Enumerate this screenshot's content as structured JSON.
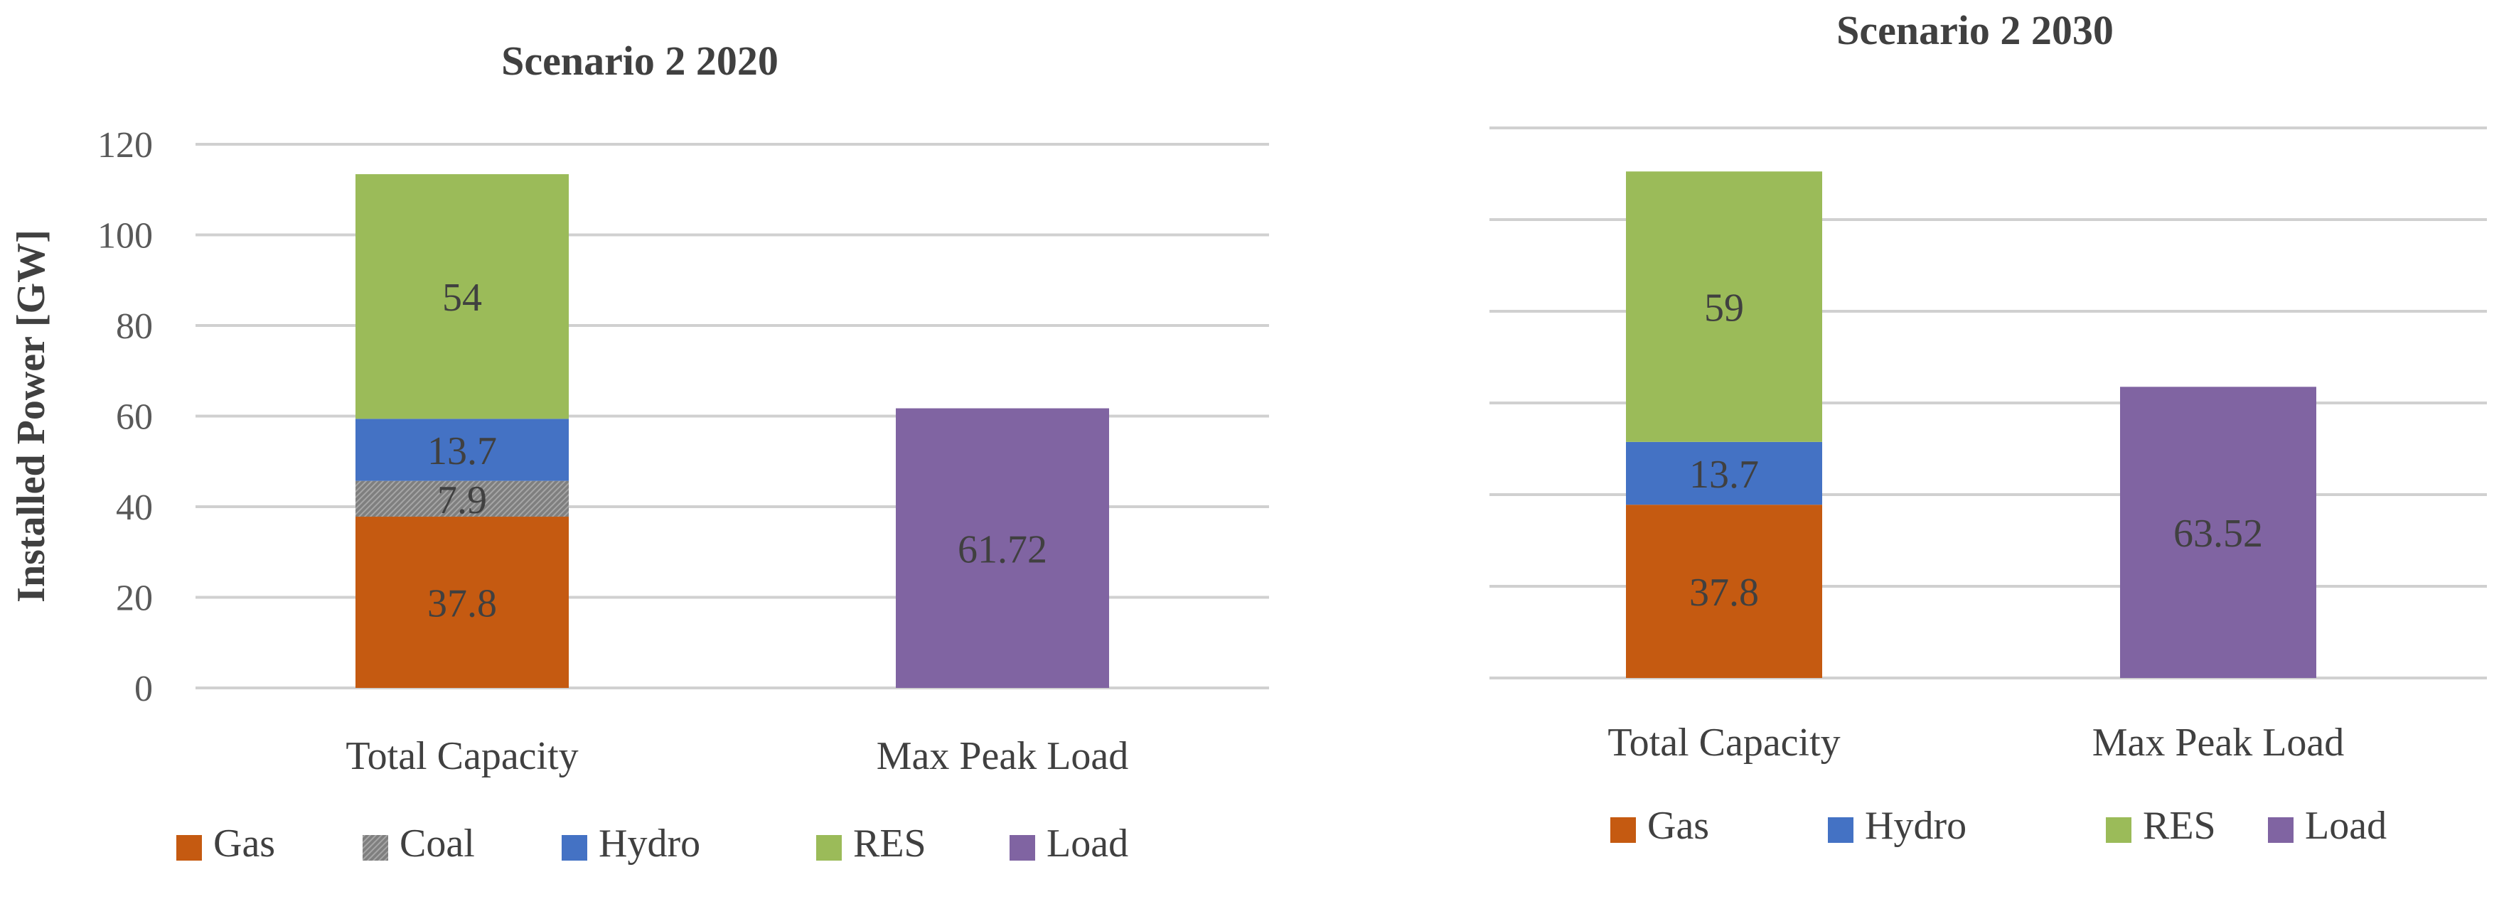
{
  "colors": {
    "Gas": "#c55a11",
    "Coal": "#7f7f7f",
    "Hydro": "#4472c4",
    "RES": "#9bbb59",
    "Load": "#8064a2",
    "Hydro2030": "#4a7ebb"
  },
  "chart_data": [
    {
      "type": "bar",
      "stacked": true,
      "title": "Scenario 2 2020",
      "ylabel": "Installed Power [GW]",
      "xlabel": "",
      "ylim": [
        0,
        120
      ],
      "yticks": [
        "0",
        "20",
        "40",
        "60",
        "80",
        "100",
        "120"
      ],
      "grid": true,
      "legend_position": "bottom",
      "categories": [
        "Total Capacity",
        "Max Peak Load"
      ],
      "series": [
        {
          "name": "Gas",
          "values": [
            37.8,
            0
          ],
          "labels": [
            "37.8",
            ""
          ]
        },
        {
          "name": "Coal",
          "values": [
            7.9,
            0
          ],
          "labels": [
            "7.9",
            ""
          ]
        },
        {
          "name": "Hydro",
          "values": [
            13.7,
            0
          ],
          "labels": [
            "13.7",
            ""
          ]
        },
        {
          "name": "RES",
          "values": [
            54,
            0
          ],
          "labels": [
            "54",
            ""
          ]
        },
        {
          "name": "Load",
          "values": [
            0,
            61.72
          ],
          "labels": [
            "",
            "61.72"
          ]
        }
      ],
      "legend": [
        "Gas",
        "Coal",
        "Hydro",
        "RES",
        "Load"
      ]
    },
    {
      "type": "bar",
      "stacked": true,
      "title": "Scenario 2 2030",
      "ylabel": "",
      "xlabel": "",
      "ylim": [
        0,
        120
      ],
      "yticks": [],
      "grid": true,
      "legend_position": "bottom",
      "categories": [
        "Total Capacity",
        "Max Peak Load"
      ],
      "series": [
        {
          "name": "Gas",
          "values": [
            37.8,
            0
          ],
          "labels": [
            "37.8",
            ""
          ]
        },
        {
          "name": "Hydro",
          "values": [
            13.7,
            0
          ],
          "labels": [
            "13.7",
            ""
          ]
        },
        {
          "name": "RES",
          "values": [
            59,
            0
          ],
          "labels": [
            "59",
            ""
          ]
        },
        {
          "name": "Load",
          "values": [
            0,
            63.52
          ],
          "labels": [
            "",
            "63.52"
          ]
        }
      ],
      "legend": [
        "Gas",
        "Hydro",
        "RES",
        "Load"
      ]
    }
  ]
}
